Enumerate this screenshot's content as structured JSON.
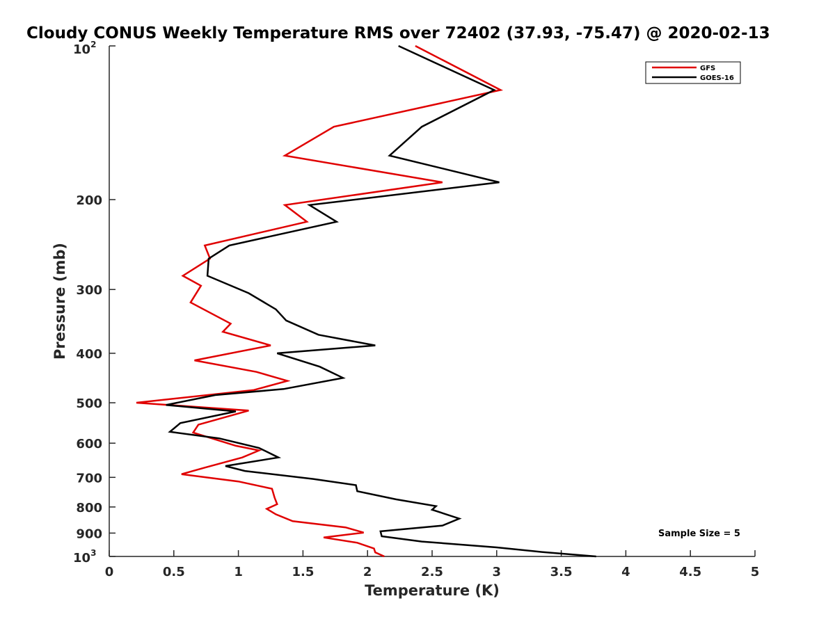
{
  "chart_data": {
    "type": "line",
    "title": "Cloudy CONUS Weekly Temperature RMS over 72402 (37.93, -75.47) @ 2020-02-13",
    "xlabel": "Temperature (K)",
    "ylabel": "Pressure (mb)",
    "xlim": [
      0,
      5
    ],
    "ylim": [
      100,
      1000
    ],
    "yscale": "log",
    "y_reversed": true,
    "x_ticks": [
      0,
      0.5,
      1,
      1.5,
      2,
      2.5,
      3,
      3.5,
      4,
      4.5,
      5
    ],
    "x_tick_labels": [
      "0",
      "0.5",
      "1",
      "1.5",
      "2",
      "2.5",
      "3",
      "3.5",
      "4",
      "4.5",
      "5"
    ],
    "y_ticks": [
      200,
      300,
      400,
      500,
      600,
      700,
      800,
      900
    ],
    "y_tick_labels": [
      "200",
      "300",
      "400",
      "500",
      "600",
      "700",
      "800",
      "900"
    ],
    "y_end_labels": {
      "top": {
        "value": 100,
        "base": "10",
        "exp": "2"
      },
      "bottom": {
        "value": 1000,
        "base": "10",
        "exp": "3"
      }
    },
    "legend_position": "top-right",
    "annotation": "Sample Size = 5",
    "series": [
      {
        "name": "GFS",
        "color": "#e00000",
        "points": [
          [
            2.37,
            100
          ],
          [
            3.03,
            122
          ],
          [
            1.74,
            144
          ],
          [
            1.36,
            164
          ],
          [
            2.58,
            185
          ],
          [
            1.36,
            205
          ],
          [
            1.53,
            221
          ],
          [
            0.74,
            246
          ],
          [
            0.78,
            261
          ],
          [
            0.57,
            282
          ],
          [
            0.71,
            295
          ],
          [
            0.63,
            318
          ],
          [
            0.94,
            350
          ],
          [
            0.88,
            363
          ],
          [
            1.25,
            386
          ],
          [
            0.66,
            413
          ],
          [
            1.14,
            435
          ],
          [
            1.38,
            453
          ],
          [
            1.12,
            472
          ],
          [
            0.21,
            500
          ],
          [
            1.08,
            518
          ],
          [
            0.69,
            552
          ],
          [
            0.65,
            572
          ],
          [
            0.98,
            607
          ],
          [
            1.16,
            620
          ],
          [
            1.03,
            640
          ],
          [
            0.74,
            670
          ],
          [
            0.56,
            690
          ],
          [
            1.0,
            713
          ],
          [
            1.26,
            737
          ],
          [
            1.28,
            767
          ],
          [
            1.3,
            790
          ],
          [
            1.22,
            807
          ],
          [
            1.29,
            827
          ],
          [
            1.42,
            853
          ],
          [
            1.83,
            877
          ],
          [
            1.97,
            898
          ],
          [
            1.66,
            918
          ],
          [
            1.92,
            940
          ],
          [
            2.05,
            965
          ],
          [
            2.06,
            982
          ],
          [
            2.13,
            1000
          ]
        ]
      },
      {
        "name": "GOES-16",
        "color": "#000000",
        "points": [
          [
            2.24,
            100
          ],
          [
            2.98,
            122
          ],
          [
            2.42,
            144
          ],
          [
            2.17,
            164
          ],
          [
            3.02,
            185
          ],
          [
            1.55,
            205
          ],
          [
            1.76,
            221
          ],
          [
            0.93,
            246
          ],
          [
            0.77,
            261
          ],
          [
            0.76,
            282
          ],
          [
            1.08,
            305
          ],
          [
            1.29,
            328
          ],
          [
            1.37,
            345
          ],
          [
            1.62,
            368
          ],
          [
            2.06,
            386
          ],
          [
            1.3,
            400
          ],
          [
            1.63,
            425
          ],
          [
            1.81,
            447
          ],
          [
            1.35,
            470
          ],
          [
            0.82,
            483
          ],
          [
            0.44,
            505
          ],
          [
            0.98,
            520
          ],
          [
            0.55,
            548
          ],
          [
            0.47,
            570
          ],
          [
            0.85,
            587
          ],
          [
            1.16,
            613
          ],
          [
            1.31,
            640
          ],
          [
            0.9,
            665
          ],
          [
            1.05,
            680
          ],
          [
            1.58,
            705
          ],
          [
            1.91,
            725
          ],
          [
            1.92,
            745
          ],
          [
            2.22,
            773
          ],
          [
            2.53,
            797
          ],
          [
            2.5,
            810
          ],
          [
            2.71,
            843
          ],
          [
            2.58,
            870
          ],
          [
            2.1,
            893
          ],
          [
            2.11,
            913
          ],
          [
            2.42,
            935
          ],
          [
            3.0,
            960
          ],
          [
            3.35,
            980
          ],
          [
            3.77,
            1000
          ]
        ]
      }
    ]
  }
}
